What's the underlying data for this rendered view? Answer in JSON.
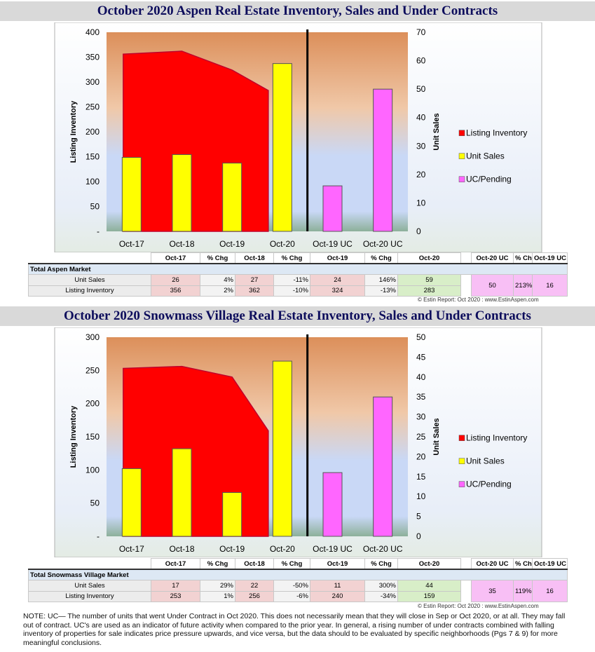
{
  "aspen": {
    "title": "October 2020 Aspen Real Estate Inventory, Sales and Under Contracts",
    "chart_data": {
      "type": "bar",
      "categories": [
        "Oct-17",
        "Oct-18",
        "Oct-19",
        "Oct-20",
        "Oct-19 UC",
        "Oct-20 UC"
      ],
      "ylabel": "Listing Inventory",
      "y2label": "Unit Sales",
      "ylim": [
        0,
        400
      ],
      "y2lim": [
        0,
        70
      ],
      "yticks": [
        "-",
        "50",
        "100",
        "150",
        "200",
        "250",
        "300",
        "350",
        "400"
      ],
      "y2ticks": [
        "0",
        "10",
        "20",
        "30",
        "40",
        "50",
        "60",
        "70"
      ],
      "series": [
        {
          "name": "Listing Inventory",
          "axis": "left",
          "render": "area",
          "values": [
            356,
            362,
            324,
            283,
            null,
            null
          ],
          "color": "#ff0000"
        },
        {
          "name": "Unit Sales",
          "axis": "right",
          "render": "bar",
          "values": [
            26,
            27,
            24,
            59,
            null,
            null
          ],
          "color": "#ffff00"
        },
        {
          "name": "UC/Pending",
          "axis": "right",
          "render": "bar",
          "values": [
            null,
            null,
            null,
            null,
            16,
            50
          ],
          "color": "#ff66ff"
        }
      ],
      "legend_position": "right"
    },
    "table": {
      "headers": [
        "Oct-17",
        "% Chg",
        "Oct-18",
        "% Chg",
        "Oct-19",
        "% Chg",
        "Oct-20",
        "",
        "Oct-20 UC",
        "% Chg",
        "Oct-19 UC"
      ],
      "section": "Total Aspen Market",
      "rows": [
        {
          "label": "Unit Sales",
          "cells": [
            "26",
            "4%",
            "27",
            "-11%",
            "24",
            "146%",
            "59",
            "",
            "50",
            "213%",
            "16"
          ]
        },
        {
          "label": "Listing Inventory",
          "cells": [
            "356",
            "2%",
            "362",
            "-10%",
            "324",
            "-13%",
            "283",
            "",
            "",
            "",
            ""
          ]
        }
      ]
    },
    "credit": "© Estin Report: Oct 2020 : www.EstinAspen.com"
  },
  "snowmass": {
    "title": "October 2020 Snowmass Village Real Estate Inventory, Sales and Under Contracts",
    "chart_data": {
      "type": "bar",
      "categories": [
        "Oct-17",
        "Oct-18",
        "Oct-19",
        "Oct-20",
        "Oct-19 UC",
        "Oct-20 UC"
      ],
      "ylabel": "Listing Inventory",
      "y2label": "Unit Sales",
      "ylim": [
        0,
        300
      ],
      "y2lim": [
        0,
        50
      ],
      "yticks": [
        "-",
        "50",
        "100",
        "150",
        "200",
        "250",
        "300"
      ],
      "y2ticks": [
        "0",
        "5",
        "10",
        "15",
        "20",
        "25",
        "30",
        "35",
        "40",
        "45",
        "50"
      ],
      "series": [
        {
          "name": "Listing Inventory",
          "axis": "left",
          "render": "area",
          "values": [
            253,
            256,
            240,
            159,
            null,
            null
          ],
          "color": "#ff0000"
        },
        {
          "name": "Unit Sales",
          "axis": "right",
          "render": "bar",
          "values": [
            17,
            22,
            11,
            44,
            null,
            null
          ],
          "color": "#ffff00"
        },
        {
          "name": "UC/Pending",
          "axis": "right",
          "render": "bar",
          "values": [
            null,
            null,
            null,
            null,
            16,
            35
          ],
          "color": "#ff66ff"
        }
      ],
      "legend_position": "right"
    },
    "table": {
      "headers": [
        "Oct-17",
        "% Chg",
        "Oct-18",
        "% Chg",
        "Oct-19",
        "% Chg",
        "Oct-20",
        "",
        "Oct-20 UC",
        "% Chg",
        "Oct-19 UC"
      ],
      "section": "Total Snowmass Village Market",
      "rows": [
        {
          "label": "Unit Sales",
          "cells": [
            "17",
            "29%",
            "22",
            "-50%",
            "11",
            "300%",
            "44",
            "",
            "35",
            "119%",
            "16"
          ]
        },
        {
          "label": "Listing Inventory",
          "cells": [
            "253",
            "1%",
            "256",
            "-6%",
            "240",
            "-34%",
            "159",
            "",
            "",
            "",
            ""
          ]
        }
      ]
    },
    "credit": "© Estin Report: Oct 2020 : www.EstinAspen.com"
  },
  "note": "NOTE: UC— The number of units that went Under Contract in Oct 2020. This does not necessarily mean that they will close in Sep or Oct 2020,  or at all. They may fall out of contract.  UC's are used as an indicator of future activity when compared to the prior year. In general, a rising number of under contracts combined with falling inventory of properties for sale indicates price pressure upwards, and vice versa, but the data should to be evaluated by specific neighborhoods (Pgs 7 & 9) for more meaningful conclusions."
}
